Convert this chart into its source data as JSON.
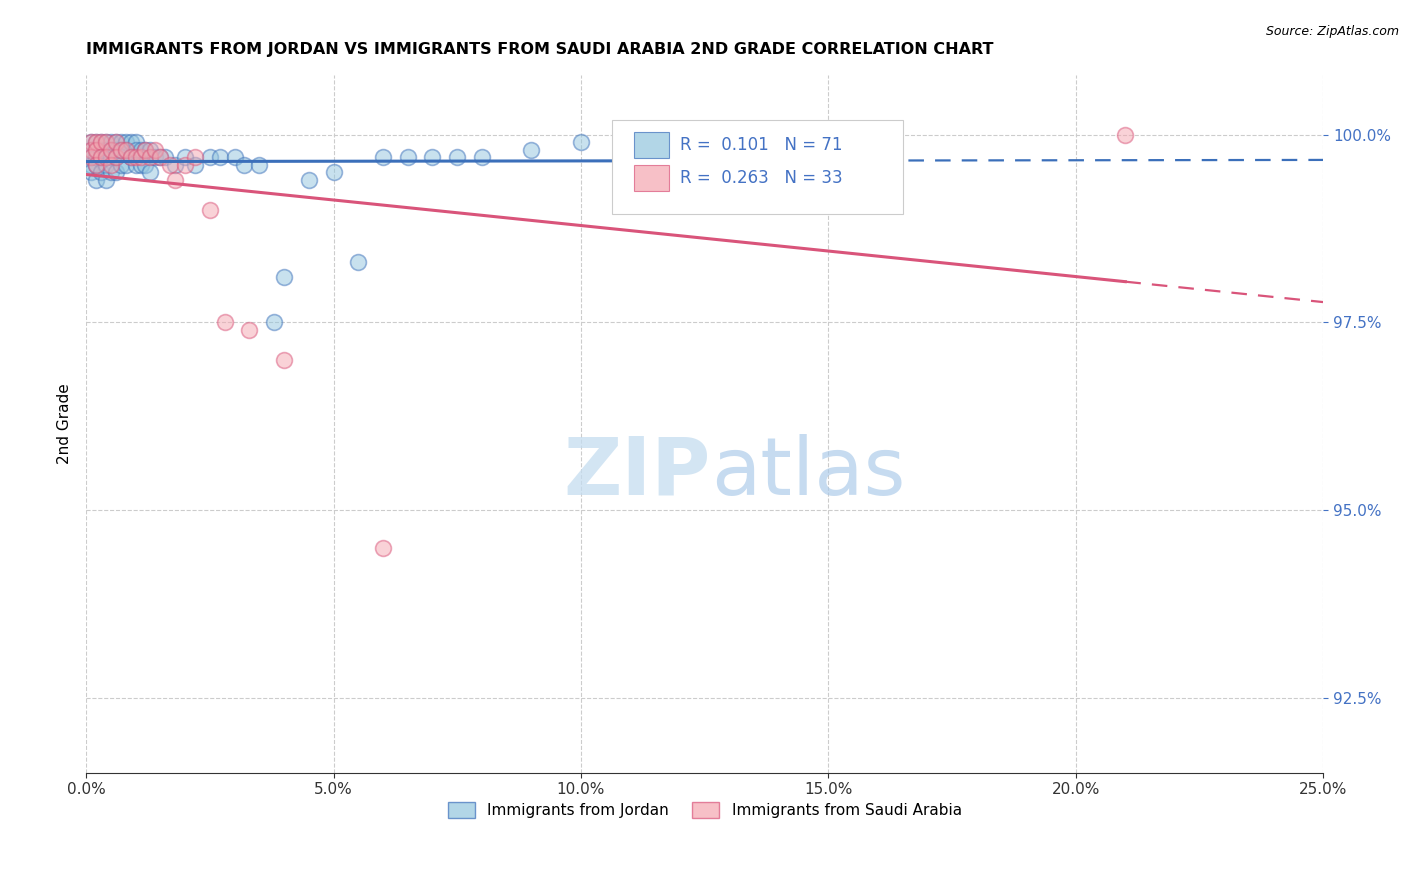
{
  "title": "IMMIGRANTS FROM JORDAN VS IMMIGRANTS FROM SAUDI ARABIA 2ND GRADE CORRELATION CHART",
  "source": "Source: ZipAtlas.com",
  "ylabel": "2nd Grade",
  "xlim": [
    0.0,
    0.25
  ],
  "ylim": [
    0.915,
    1.008
  ],
  "yticks": [
    0.925,
    0.95,
    0.975,
    1.0
  ],
  "xticks": [
    0.0,
    0.05,
    0.1,
    0.15,
    0.2,
    0.25
  ],
  "blue_color": "#92c5de",
  "pink_color": "#f4a6b0",
  "blue_line_color": "#3b6fba",
  "pink_line_color": "#d9547a",
  "R_jordan": 0.101,
  "N_jordan": 71,
  "R_saudi": 0.263,
  "N_saudi": 33,
  "jordan_x": [
    0.001,
    0.001,
    0.001,
    0.001,
    0.001,
    0.002,
    0.002,
    0.002,
    0.002,
    0.002,
    0.003,
    0.003,
    0.003,
    0.003,
    0.004,
    0.004,
    0.004,
    0.004,
    0.004,
    0.005,
    0.005,
    0.005,
    0.005,
    0.006,
    0.006,
    0.006,
    0.006,
    0.007,
    0.007,
    0.007,
    0.008,
    0.008,
    0.008,
    0.009,
    0.009,
    0.01,
    0.01,
    0.01,
    0.011,
    0.011,
    0.012,
    0.012,
    0.013,
    0.013,
    0.014,
    0.015,
    0.016,
    0.018,
    0.02,
    0.022,
    0.025,
    0.027,
    0.03,
    0.032,
    0.035,
    0.038,
    0.04,
    0.045,
    0.05,
    0.055,
    0.06,
    0.065,
    0.07,
    0.075,
    0.08,
    0.09,
    0.1,
    0.11,
    0.12,
    0.13,
    0.15
  ],
  "jordan_y": [
    0.999,
    0.998,
    0.997,
    0.996,
    0.995,
    0.999,
    0.998,
    0.997,
    0.996,
    0.994,
    0.999,
    0.998,
    0.997,
    0.995,
    0.999,
    0.998,
    0.997,
    0.996,
    0.994,
    0.999,
    0.998,
    0.997,
    0.995,
    0.999,
    0.998,
    0.997,
    0.995,
    0.999,
    0.998,
    0.996,
    0.999,
    0.998,
    0.996,
    0.999,
    0.997,
    0.999,
    0.998,
    0.996,
    0.998,
    0.996,
    0.998,
    0.996,
    0.998,
    0.995,
    0.997,
    0.997,
    0.997,
    0.996,
    0.997,
    0.996,
    0.997,
    0.997,
    0.997,
    0.996,
    0.996,
    0.975,
    0.981,
    0.994,
    0.995,
    0.983,
    0.997,
    0.997,
    0.997,
    0.997,
    0.997,
    0.998,
    0.999,
    0.999,
    0.999,
    1.0,
    1.0
  ],
  "saudi_x": [
    0.001,
    0.001,
    0.001,
    0.002,
    0.002,
    0.002,
    0.003,
    0.003,
    0.004,
    0.004,
    0.005,
    0.005,
    0.006,
    0.006,
    0.007,
    0.008,
    0.009,
    0.01,
    0.011,
    0.012,
    0.013,
    0.014,
    0.015,
    0.017,
    0.018,
    0.02,
    0.022,
    0.025,
    0.028,
    0.033,
    0.04,
    0.06,
    0.21
  ],
  "saudi_y": [
    0.999,
    0.998,
    0.997,
    0.999,
    0.998,
    0.996,
    0.999,
    0.997,
    0.999,
    0.997,
    0.998,
    0.996,
    0.999,
    0.997,
    0.998,
    0.998,
    0.997,
    0.997,
    0.997,
    0.998,
    0.997,
    0.998,
    0.997,
    0.996,
    0.994,
    0.996,
    0.997,
    0.99,
    0.975,
    0.974,
    0.97,
    0.945,
    1.0
  ],
  "watermark_zip": "ZIP",
  "watermark_atlas": "atlas",
  "background_color": "#ffffff",
  "axis_color": "#4472c4",
  "legend_jordan": "Immigrants from Jordan",
  "legend_saudi": "Immigrants from Saudi Arabia"
}
